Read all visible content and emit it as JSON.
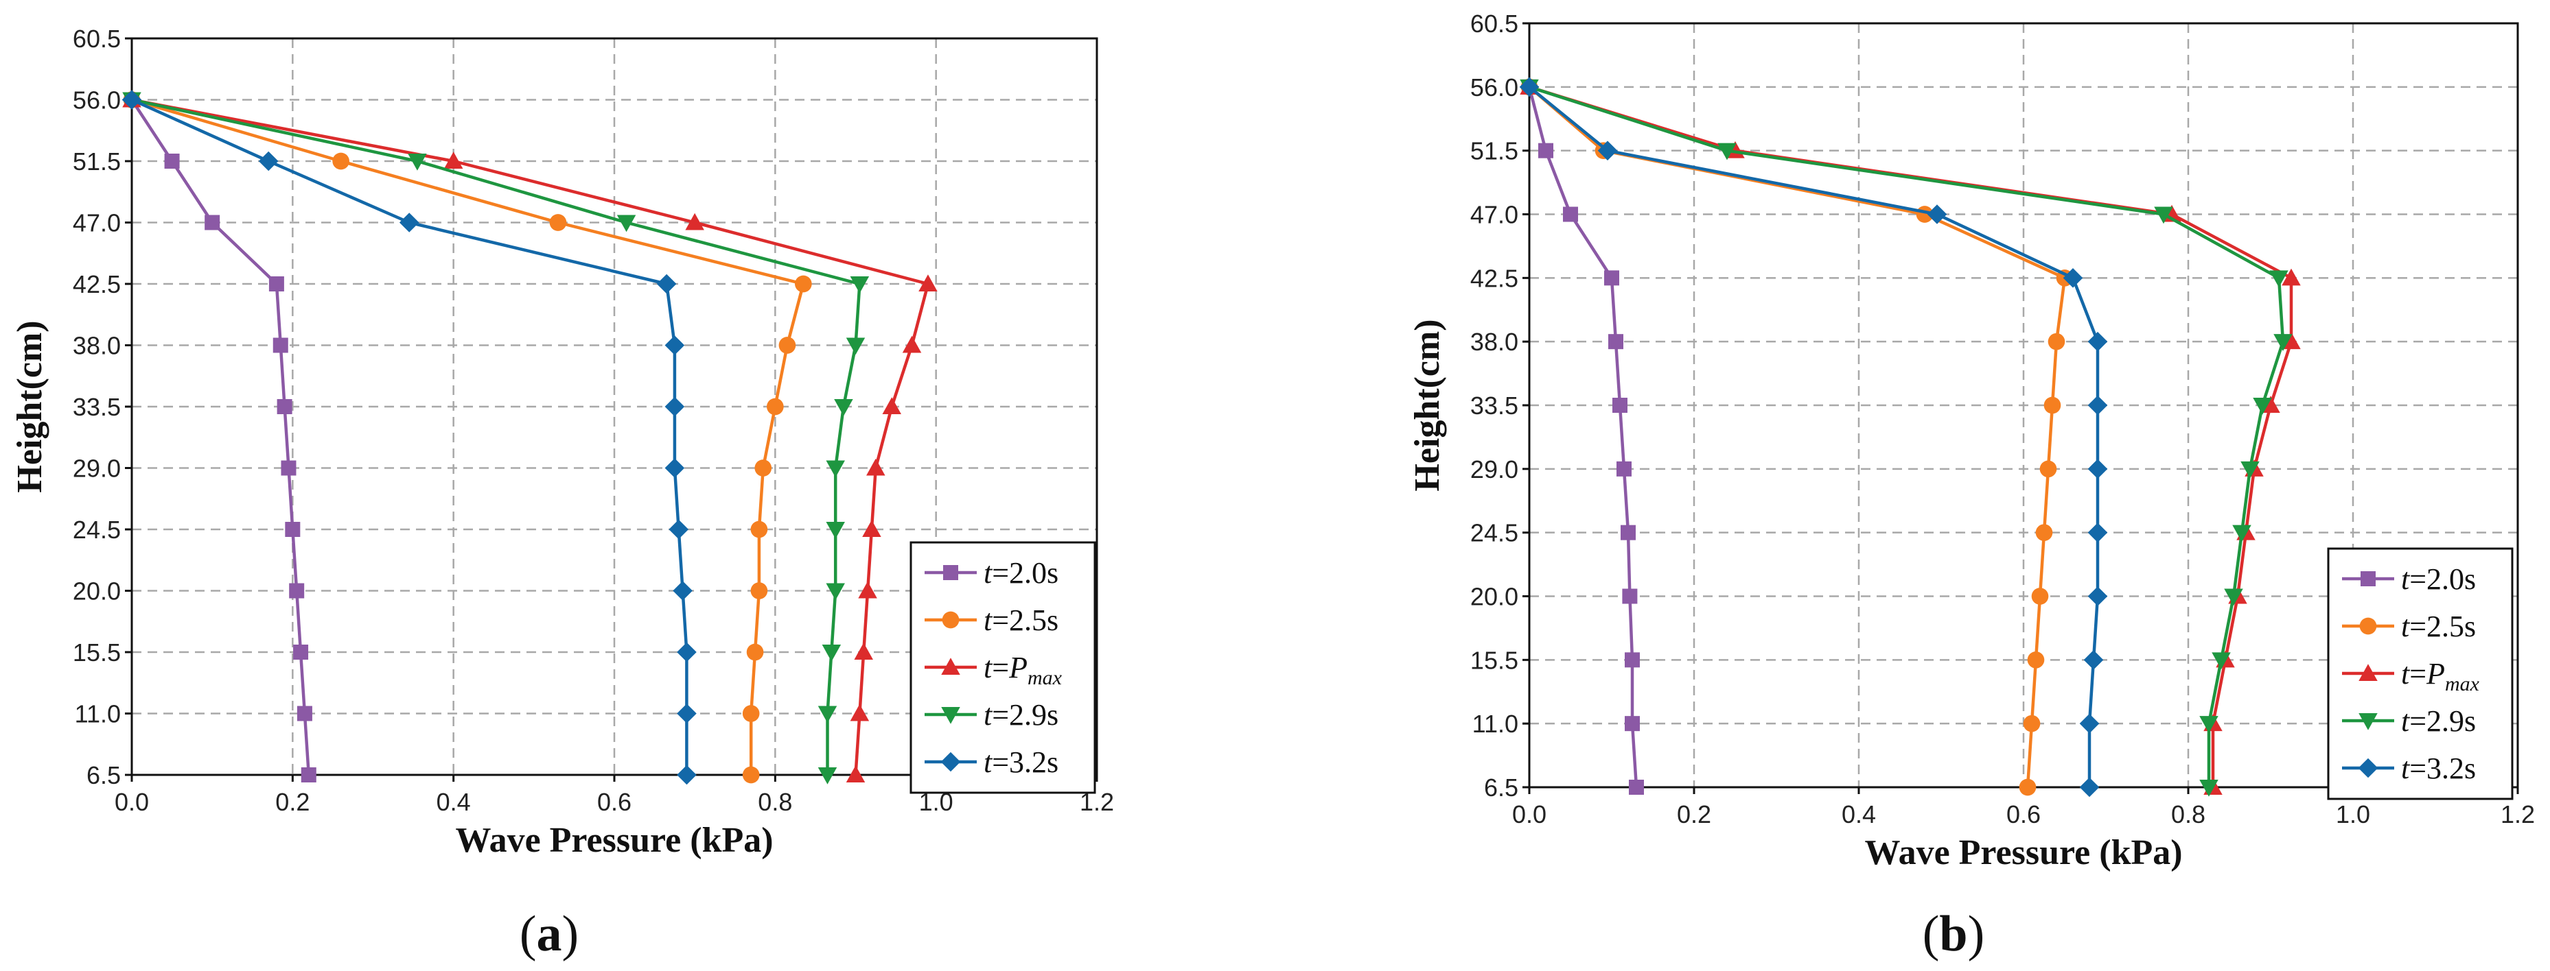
{
  "chart_data": [
    {
      "type": "line",
      "panel": "(a)",
      "xlabel": "Wave Pressure (kPa)",
      "ylabel": "Height(cm)",
      "xlim": [
        0.0,
        1.2
      ],
      "ylim": [
        6.5,
        60.5
      ],
      "x_ticks": [
        "0.0",
        "0.2",
        "0.4",
        "0.6",
        "0.8",
        "1.0",
        "1.2"
      ],
      "y_ticks": [
        "6.5",
        "11.0",
        "15.5",
        "20.0",
        "24.5",
        "29.0",
        "33.5",
        "38.0",
        "42.5",
        "47.0",
        "51.5",
        "56.0",
        "60.5"
      ],
      "grid": true,
      "legend_position": "bottom-right",
      "heights": [
        56.0,
        51.5,
        47.0,
        42.5,
        38.0,
        33.5,
        29.0,
        24.5,
        20.0,
        15.5,
        11.0,
        6.5
      ],
      "series": [
        {
          "prefix": "t",
          "value": "=2.0s",
          "color": "#8b59a5",
          "marker": "square",
          "x": [
            0.0,
            0.05,
            0.1,
            0.18,
            0.185,
            0.19,
            0.195,
            0.2,
            0.205,
            0.21,
            0.215,
            0.22
          ]
        },
        {
          "prefix": "t",
          "value": "=2.5s",
          "color": "#f57f20",
          "marker": "circle",
          "x": [
            0.0,
            0.26,
            0.53,
            0.835,
            0.815,
            0.8,
            0.785,
            0.78,
            0.78,
            0.775,
            0.77,
            0.77
          ]
        },
        {
          "prefix": "t",
          "value": "=",
          "sub_main": "P",
          "sub_script": "max",
          "color": "#dc2c2c",
          "marker": "triangle-up",
          "x": [
            0.0,
            0.4,
            0.7,
            0.99,
            0.97,
            0.945,
            0.925,
            0.92,
            0.915,
            0.91,
            0.905,
            0.9
          ]
        },
        {
          "prefix": "t",
          "value": "=2.9s",
          "color": "#1e9640",
          "marker": "triangle-down",
          "x": [
            0.0,
            0.355,
            0.615,
            0.905,
            0.9,
            0.885,
            0.875,
            0.875,
            0.875,
            0.87,
            0.865,
            0.865
          ]
        },
        {
          "prefix": "t",
          "value": "=3.2s",
          "color": "#1368a8",
          "marker": "diamond",
          "x": [
            0.0,
            0.17,
            0.345,
            0.665,
            0.675,
            0.675,
            0.675,
            0.68,
            0.685,
            0.69,
            0.69,
            0.69
          ]
        }
      ]
    },
    {
      "type": "line",
      "panel": "(b)",
      "xlabel": "Wave Pressure (kPa)",
      "ylabel": "Height(cm)",
      "xlim": [
        0.0,
        1.2
      ],
      "ylim": [
        6.5,
        60.5
      ],
      "x_ticks": [
        "0.0",
        "0.2",
        "0.4",
        "0.6",
        "0.8",
        "1.0",
        "1.2"
      ],
      "y_ticks": [
        "6.5",
        "11.0",
        "15.5",
        "20.0",
        "24.5",
        "29.0",
        "33.5",
        "38.0",
        "42.5",
        "47.0",
        "51.5",
        "56.0",
        "60.5"
      ],
      "grid": true,
      "legend_position": "bottom-right",
      "heights": [
        56.0,
        51.5,
        47.0,
        42.5,
        38.0,
        33.5,
        29.0,
        24.5,
        20.0,
        15.5,
        11.0,
        6.5
      ],
      "series": [
        {
          "prefix": "t",
          "value": "=2.0s",
          "color": "#8b59a5",
          "marker": "square",
          "x": [
            0.0,
            0.02,
            0.05,
            0.1,
            0.105,
            0.11,
            0.115,
            0.12,
            0.122,
            0.125,
            0.125,
            0.13
          ]
        },
        {
          "prefix": "t",
          "value": "=2.5s",
          "color": "#f57f20",
          "marker": "circle",
          "x": [
            0.0,
            0.09,
            0.48,
            0.65,
            0.64,
            0.635,
            0.63,
            0.625,
            0.62,
            0.615,
            0.61,
            0.605
          ]
        },
        {
          "prefix": "t",
          "value": "=",
          "sub_main": "P",
          "sub_script": "max",
          "color": "#dc2c2c",
          "marker": "triangle-up",
          "x": [
            0.0,
            0.25,
            0.78,
            0.925,
            0.925,
            0.9,
            0.88,
            0.87,
            0.86,
            0.845,
            0.83,
            0.83
          ]
        },
        {
          "prefix": "t",
          "value": "=2.9s",
          "color": "#1e9640",
          "marker": "triangle-down",
          "x": [
            0.0,
            0.24,
            0.77,
            0.91,
            0.915,
            0.89,
            0.875,
            0.865,
            0.855,
            0.84,
            0.825,
            0.825
          ]
        },
        {
          "prefix": "t",
          "value": "=3.2s",
          "color": "#1368a8",
          "marker": "diamond",
          "x": [
            0.0,
            0.095,
            0.495,
            0.66,
            0.69,
            0.69,
            0.69,
            0.69,
            0.69,
            0.685,
            0.68,
            0.68
          ]
        }
      ]
    }
  ]
}
